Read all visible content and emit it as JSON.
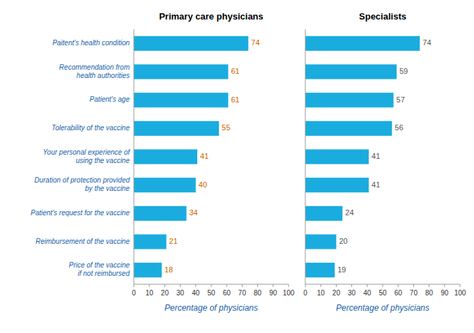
{
  "chart_data": [
    {
      "type": "bar",
      "orientation": "horizontal",
      "title": "Primary care physicians",
      "categories": [
        "Paitent's health condition",
        "Recommendation from\nhealth authorities",
        "Patient's age",
        "Tolerability of the vaccine",
        "Your personal experience of\nusing the vaccine",
        "Duration of protection provided\nby the vaccine",
        "Patient's request for the vaccine",
        "Reimbursement of the vaccine",
        "Price of the vaccine\nif not reimbursed"
      ],
      "values": [
        74,
        61,
        61,
        55,
        41,
        40,
        34,
        21,
        18
      ],
      "color": "#1AACDE",
      "x_label": "Percentage of physicians",
      "xlim": [
        0,
        100
      ],
      "xticks": [
        0,
        10,
        20,
        30,
        40,
        50,
        60,
        70,
        80,
        90,
        100
      ],
      "grid": false,
      "data_labels": true,
      "tick_labels": true
    },
    {
      "type": "bar",
      "orientation": "horizontal",
      "title": "Specialists",
      "categories": [
        "Paitent's health condition",
        "Recommendation from\nhealth authorities",
        "Patient's age",
        "Tolerability of the vaccine",
        "Your personal experience of\nusing the vaccine",
        "Duration of protection provided\nby the vaccine",
        "Patient's request for the vaccine",
        "Reimbursement of the vaccine",
        "Price of the vaccine\nif not reimbursed"
      ],
      "values": [
        74,
        59,
        57,
        56,
        41,
        41,
        24,
        20,
        19
      ],
      "color": "#1AACDE",
      "x_label": "Percentage of physicians",
      "xlim": [
        0,
        100
      ],
      "xticks": [
        0,
        10,
        20,
        30,
        40,
        50,
        60,
        70,
        80,
        90,
        100
      ],
      "grid": false,
      "data_labels": true,
      "tick_labels": "x"
    }
  ]
}
